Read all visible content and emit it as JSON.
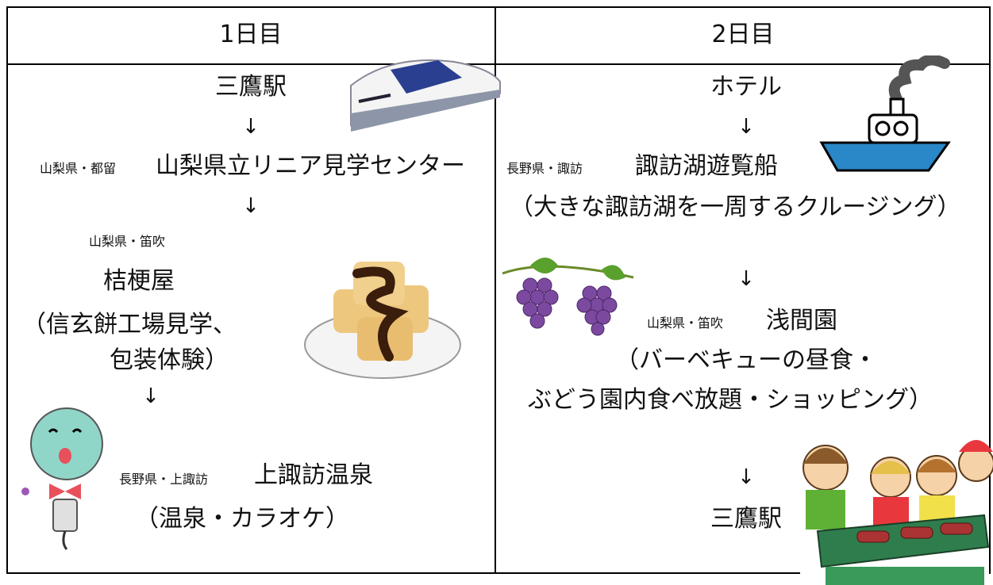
{
  "table": {
    "headers": [
      "1日目",
      "2日目"
    ],
    "day1": [
      "三鷹駅",
      "↓",
      "山梨県・都留",
      "山梨県立リニア見学センター",
      "↓",
      "山梨県・笛吹",
      "桔梗屋",
      "（信玄餅工場見学、",
      "包装体験）",
      "↓",
      "長野県・上諏訪",
      "上諏訪温泉",
      "（温泉・カラオケ）"
    ],
    "day2": [
      "ホテル",
      "↓",
      "長野県・諏訪",
      "諏訪湖遊覧船",
      "（大きな諏訪湖を一周するクルージング）",
      "↓",
      "山梨県・笛吹",
      "浅間園",
      "（バーベキューの昼食・",
      "ぶどう園内食べ放題・ショッピング）",
      "↓",
      "三鷹駅"
    ]
  }
}
